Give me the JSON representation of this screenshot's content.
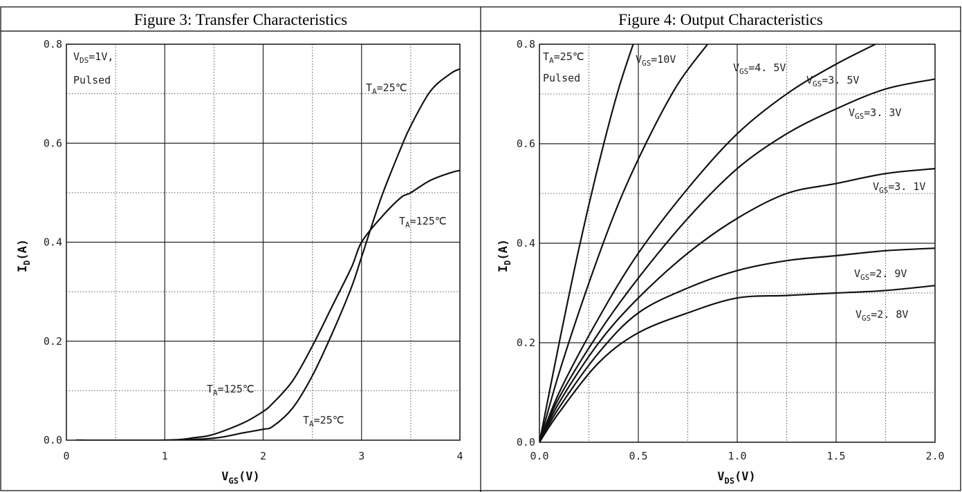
{
  "figures": [
    {
      "header": "Figure 3: Transfer Characteristics",
      "conditions": [
        {
          "base": "V",
          "sub": "DS",
          "rest": "=1V,"
        },
        {
          "base": "Pulsed",
          "sub": "",
          "rest": ""
        }
      ],
      "xlabel": {
        "base": "V",
        "sub": "GS",
        "rest": "(V)"
      },
      "ylabel": {
        "base": "I",
        "sub": "D",
        "rest": "(A)"
      },
      "x_ticks": [
        "0",
        "1",
        "2",
        "3",
        "4"
      ],
      "y_ticks": [
        "0.0",
        "0.2",
        "0.4",
        "0.6",
        "0.8"
      ],
      "curve_labels": [
        {
          "base": "T",
          "sub": "A",
          "rest": "=25℃"
        },
        {
          "base": "T",
          "sub": "A",
          "rest": "=125℃"
        },
        {
          "base": "T",
          "sub": "A",
          "rest": "=125℃"
        },
        {
          "base": "T",
          "sub": "A",
          "rest": "=25℃"
        }
      ]
    },
    {
      "header": "Figure 4:    Output Characteristics",
      "conditions": [
        {
          "base": "T",
          "sub": "A",
          "rest": "=25℃"
        },
        {
          "base": "Pulsed",
          "sub": "",
          "rest": ""
        }
      ],
      "xlabel": {
        "base": "V",
        "sub": "DS",
        "rest": "(V)"
      },
      "ylabel": {
        "base": "I",
        "sub": "D",
        "rest": "(A)"
      },
      "x_ticks": [
        "0.0",
        "0.5",
        "1.0",
        "1.5",
        "2.0"
      ],
      "y_ticks": [
        "0.0",
        "0.2",
        "0.4",
        "0.6",
        "0.8"
      ],
      "curve_labels": [
        {
          "base": "V",
          "sub": "GS",
          "rest": "=10V"
        },
        {
          "base": "V",
          "sub": "GS",
          "rest": "=4. 5V"
        },
        {
          "base": "V",
          "sub": "GS",
          "rest": "=3. 5V"
        },
        {
          "base": "V",
          "sub": "GS",
          "rest": "=3. 3V"
        },
        {
          "base": "V",
          "sub": "GS",
          "rest": "=3. 1V"
        },
        {
          "base": "V",
          "sub": "GS",
          "rest": "=2. 9V"
        },
        {
          "base": "V",
          "sub": "GS",
          "rest": "=2. 8V"
        }
      ]
    }
  ],
  "chart_data": [
    {
      "type": "line",
      "title": "Figure 3: Transfer Characteristics",
      "xlabel": "VGS(V)",
      "ylabel": "ID(A)",
      "xlim": [
        0,
        4
      ],
      "ylim": [
        0,
        0.8
      ],
      "grid": "major solid, minor dotted",
      "series": [
        {
          "name": "TA=25℃",
          "x": [
            0.1,
            1.0,
            1.5,
            1.8,
            2.0,
            2.1,
            2.3,
            2.5,
            2.7,
            2.9,
            3.0,
            3.2,
            3.4,
            3.5,
            3.7,
            3.9,
            4.0
          ],
          "y": [
            0.0,
            0.0,
            0.004,
            0.015,
            0.022,
            0.028,
            0.065,
            0.13,
            0.215,
            0.31,
            0.37,
            0.49,
            0.59,
            0.635,
            0.705,
            0.74,
            0.75
          ]
        },
        {
          "name": "TA=125℃",
          "x": [
            0.1,
            1.0,
            1.3,
            1.5,
            1.8,
            2.0,
            2.1,
            2.3,
            2.5,
            2.7,
            2.9,
            3.0,
            3.2,
            3.4,
            3.5,
            3.7,
            3.9,
            4.0
          ],
          "y": [
            0.0,
            0.0,
            0.005,
            0.012,
            0.035,
            0.058,
            0.075,
            0.12,
            0.19,
            0.27,
            0.35,
            0.4,
            0.45,
            0.49,
            0.5,
            0.525,
            0.54,
            0.545
          ]
        }
      ]
    },
    {
      "type": "line",
      "title": "Figure 4:    Output Characteristics",
      "xlabel": "VDS(V)",
      "ylabel": "ID(A)",
      "xlim": [
        0,
        2.0
      ],
      "ylim": [
        0,
        0.8
      ],
      "grid": "major solid, minor dotted",
      "series": [
        {
          "name": "VGS=10V",
          "x": [
            0.0,
            0.1,
            0.2,
            0.3,
            0.4,
            0.5
          ],
          "y": [
            0.0,
            0.2,
            0.39,
            0.56,
            0.71,
            0.83
          ]
        },
        {
          "name": "VGS=4. 5V",
          "x": [
            0.0,
            0.1,
            0.25,
            0.4,
            0.55,
            0.7,
            0.85
          ],
          "y": [
            0.0,
            0.14,
            0.32,
            0.48,
            0.61,
            0.72,
            0.8
          ]
        },
        {
          "name": "VGS=3. 5V",
          "x": [
            0.0,
            0.1,
            0.3,
            0.5,
            0.75,
            1.0,
            1.25,
            1.5,
            1.75
          ],
          "y": [
            0.0,
            0.1,
            0.25,
            0.38,
            0.51,
            0.62,
            0.7,
            0.76,
            0.81
          ]
        },
        {
          "name": "VGS=3. 3V",
          "x": [
            0.0,
            0.1,
            0.3,
            0.5,
            0.75,
            1.0,
            1.25,
            1.5,
            1.75,
            2.0
          ],
          "y": [
            0.0,
            0.09,
            0.22,
            0.33,
            0.45,
            0.55,
            0.62,
            0.67,
            0.71,
            0.73
          ]
        },
        {
          "name": "VGS=3. 1V",
          "x": [
            0.0,
            0.1,
            0.3,
            0.5,
            0.75,
            1.0,
            1.25,
            1.5,
            1.75,
            2.0
          ],
          "y": [
            0.0,
            0.08,
            0.2,
            0.29,
            0.38,
            0.45,
            0.5,
            0.52,
            0.54,
            0.55
          ]
        },
        {
          "name": "VGS=2. 9V",
          "x": [
            0.0,
            0.1,
            0.3,
            0.5,
            0.75,
            1.0,
            1.25,
            1.5,
            1.75,
            2.0
          ],
          "y": [
            0.0,
            0.07,
            0.18,
            0.26,
            0.31,
            0.345,
            0.365,
            0.375,
            0.385,
            0.39
          ]
        },
        {
          "name": "VGS=2. 8V",
          "x": [
            0.0,
            0.1,
            0.3,
            0.5,
            0.75,
            1.0,
            1.25,
            1.5,
            1.75,
            2.0
          ],
          "y": [
            0.0,
            0.06,
            0.16,
            0.22,
            0.26,
            0.29,
            0.295,
            0.3,
            0.305,
            0.315
          ]
        }
      ]
    }
  ]
}
